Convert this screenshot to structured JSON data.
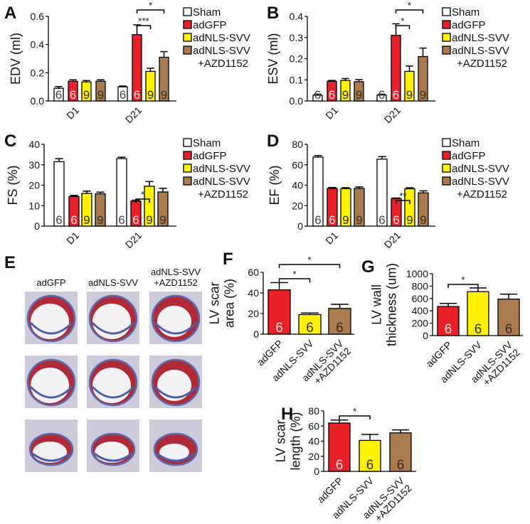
{
  "colors": {
    "Sham": "#ffffff",
    "adGFP": "#e8202a",
    "adNLS-SVV": "#fff200",
    "adNLS-SVV+AZD1152": "#a87c50"
  },
  "legend": {
    "entries": [
      "Sham",
      "adGFP",
      "adNLS-SVV",
      "adNLS-SVV"
    ],
    "continuation": "+AZD1152"
  },
  "chart_data": [
    {
      "panel": "A",
      "type": "bar",
      "ylabel": [
        "EDV (ml)"
      ],
      "ylim": [
        0,
        0.6
      ],
      "yticks": [
        "0.0",
        "0.2",
        "0.4",
        "0.6"
      ],
      "tickvals": [
        0,
        0.2,
        0.4,
        0.6
      ],
      "categories": [
        "D1",
        "D21"
      ],
      "series_keys": [
        "Sham",
        "adGFP",
        "adNLS-SVV",
        "adNLS-SVV+AZD1152"
      ],
      "values": [
        [
          0.09,
          0.14,
          0.135,
          0.14
        ],
        [
          0.1,
          0.47,
          0.21,
          0.31
        ]
      ],
      "errors": [
        [
          0.012,
          0.01,
          0.01,
          0.01
        ],
        [
          0.006,
          0.07,
          0.022,
          0.04
        ]
      ],
      "n": [
        [
          "6",
          "6",
          "9",
          "9"
        ],
        [
          "6",
          "6",
          "9",
          "9"
        ]
      ],
      "significance": [
        {
          "group": 1,
          "from": 1,
          "to": 2,
          "label": "***"
        },
        {
          "group": 1,
          "from": 1,
          "to": 3,
          "label": "*"
        }
      ]
    },
    {
      "panel": "B",
      "type": "bar",
      "ylabel": [
        "ESV (ml)"
      ],
      "ylim": [
        0,
        0.4
      ],
      "yticks": [
        "0.0",
        "0.1",
        "0.2",
        "0.3",
        "0.4"
      ],
      "tickvals": [
        0,
        0.1,
        0.2,
        0.3,
        0.4
      ],
      "categories": [
        "D1",
        "D21"
      ],
      "series_keys": [
        "Sham",
        "adGFP",
        "adNLS-SVV",
        "adNLS-SVV+AZD1152"
      ],
      "values": [
        [
          0.027,
          0.093,
          0.097,
          0.091
        ],
        [
          0.028,
          0.31,
          0.14,
          0.21
        ]
      ],
      "errors": [
        [
          0.005,
          0.004,
          0.009,
          0.01
        ],
        [
          0.004,
          0.055,
          0.025,
          0.04
        ]
      ],
      "n": [
        [
          "6",
          "6",
          "9",
          "9"
        ],
        [
          "6",
          "6",
          "9",
          "9"
        ]
      ],
      "significance": [
        {
          "group": 1,
          "from": 1,
          "to": 2,
          "label": "*"
        },
        {
          "group": 1,
          "from": 1,
          "to": 3,
          "label": "*"
        }
      ]
    },
    {
      "panel": "C",
      "type": "bar",
      "ylabel": [
        "FS (%)"
      ],
      "ylim": [
        0,
        40
      ],
      "yticks": [
        "0",
        "10",
        "20",
        "30",
        "40"
      ],
      "tickvals": [
        0,
        10,
        20,
        30,
        40
      ],
      "categories": [
        "D1",
        "D21"
      ],
      "series_keys": [
        "Sham",
        "adGFP",
        "adNLS-SVV",
        "adNLS-SVV+AZD1152"
      ],
      "values": [
        [
          31.5,
          14.5,
          16,
          15.8
        ],
        [
          33,
          12.2,
          19.5,
          16.7
        ]
      ],
      "errors": [
        [
          1.5,
          0.5,
          1.1,
          0.8
        ],
        [
          0.7,
          0.5,
          2.3,
          1.8
        ]
      ],
      "n": [
        [
          "6",
          "6",
          "9",
          "9"
        ],
        [
          "6",
          "6",
          "9",
          "9"
        ]
      ],
      "significance": [
        {
          "group": 1,
          "from": 1,
          "to": 2,
          "label": "*"
        }
      ]
    },
    {
      "panel": "D",
      "type": "bar",
      "ylabel": [
        "EF (%)"
      ],
      "ylim": [
        0,
        80
      ],
      "yticks": [
        "0",
        "20",
        "40",
        "60",
        "80"
      ],
      "tickvals": [
        0,
        20,
        40,
        60,
        80
      ],
      "categories": [
        "D1",
        "D21"
      ],
      "series_keys": [
        "Sham",
        "adGFP",
        "adNLS-SVV",
        "adNLS-SVV+AZD1152"
      ],
      "values": [
        [
          67.5,
          36.8,
          36.6,
          36.8
        ],
        [
          65.5,
          27,
          36.5,
          32.5
        ]
      ],
      "errors": [
        [
          1.5,
          1,
          1,
          1.5
        ],
        [
          2.5,
          0.5,
          1,
          2
        ]
      ],
      "n": [
        [
          "6",
          "6",
          "9",
          "9"
        ],
        [
          "6",
          "6",
          "9",
          "9"
        ]
      ],
      "significance": [
        {
          "group": 1,
          "from": 1,
          "to": 2,
          "label": "**"
        }
      ]
    },
    {
      "panel": "F",
      "type": "bar",
      "ylabel": [
        "LV scar",
        "area (%)"
      ],
      "ylim": [
        0,
        60
      ],
      "yticks": [
        "0",
        "20",
        "40",
        "60"
      ],
      "tickvals": [
        0,
        20,
        40,
        60
      ],
      "categories": [
        [
          "adGFP"
        ],
        [
          "adNLS-SVV"
        ],
        [
          "adNLS-SVV",
          "+AZD1152"
        ]
      ],
      "series_keys": [
        "adGFP",
        "adNLS-SVV",
        "adNLS-SVV+AZD1152"
      ],
      "values": [
        43,
        19,
        25
      ],
      "errors": [
        7,
        1.5,
        4
      ],
      "n": [
        "6",
        "6",
        "6"
      ],
      "significance": [
        {
          "from": 0,
          "to": 1,
          "label": "*"
        },
        {
          "from": 0,
          "to": 2,
          "label": "*"
        }
      ]
    },
    {
      "panel": "G",
      "type": "bar",
      "ylabel": [
        "LV wall",
        "thickness (um)"
      ],
      "ylim": [
        0,
        1000
      ],
      "yticks": [
        "0",
        "200",
        "400",
        "600",
        "800",
        "1000"
      ],
      "tickvals": [
        0,
        200,
        400,
        600,
        800,
        1000
      ],
      "categories": [
        [
          "adGFP"
        ],
        [
          "adNLS-SVV"
        ],
        [
          "adNLS-SVV",
          "+AZD1152"
        ]
      ],
      "series_keys": [
        "adGFP",
        "adNLS-SVV",
        "adNLS-SVV+AZD1152"
      ],
      "values": [
        470,
        710,
        590
      ],
      "errors": [
        50,
        60,
        80
      ],
      "n": [
        "6",
        "6",
        "6"
      ],
      "significance": [
        {
          "from": 0,
          "to": 1,
          "label": "*"
        }
      ]
    },
    {
      "panel": "H",
      "type": "bar",
      "ylabel": [
        "LV scar",
        "length (%)"
      ],
      "ylim": [
        0,
        80
      ],
      "yticks": [
        "0",
        "20",
        "40",
        "60",
        "80"
      ],
      "tickvals": [
        0,
        20,
        40,
        60,
        80
      ],
      "categories": [
        [
          "adGFP"
        ],
        [
          "adNLS-SVV"
        ],
        [
          "adNLS-SVV",
          "+AZD1152"
        ]
      ],
      "series_keys": [
        "adGFP",
        "adNLS-SVV",
        "adNLS-SVV+AZD1152"
      ],
      "values": [
        64,
        41,
        51
      ],
      "errors": [
        4,
        8,
        4
      ],
      "n": [
        "6",
        "6",
        "6"
      ],
      "significance": [
        {
          "from": 0,
          "to": 1,
          "label": "*"
        }
      ]
    }
  ],
  "histology": {
    "panel": "E",
    "columns": [
      [
        "adGFP"
      ],
      [
        "adNLS-SVV"
      ],
      [
        "adNLS-SVV",
        "+AZD1152"
      ]
    ],
    "rows": 3
  }
}
